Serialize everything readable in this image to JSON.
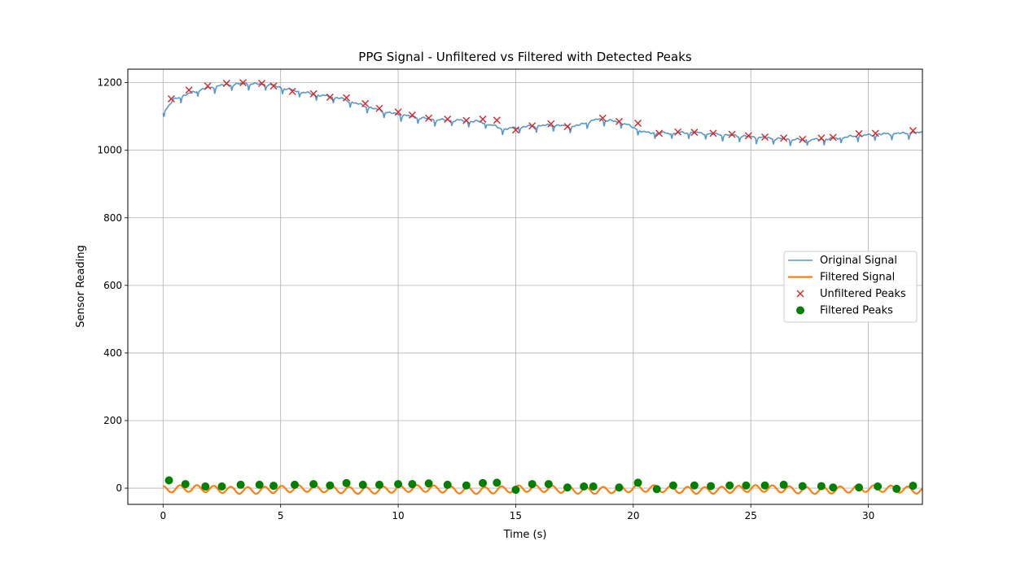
{
  "chart_data": {
    "type": "line",
    "title": "PPG Signal - Unfiltered vs Filtered with Detected Peaks",
    "xlabel": "Time (s)",
    "ylabel": "Sensor Reading",
    "xlim": [
      -1.5,
      32.3
    ],
    "ylim": [
      -48,
      1240
    ],
    "xticks": [
      0,
      5,
      10,
      15,
      20,
      25,
      30
    ],
    "yticks": [
      0,
      200,
      400,
      600,
      800,
      1000,
      1200
    ],
    "grid": true,
    "legend_position": "center-right",
    "colors": {
      "original": "#1f77b4",
      "filtered": "#ff7f0e",
      "unfiltered_peaks": "#d62728",
      "filtered_peaks": "#008000"
    },
    "series": [
      {
        "name": "Original Signal",
        "kind": "line",
        "x": [
          0,
          0.5,
          1.5,
          2.5,
          3.5,
          4.5,
          5.5,
          6.5,
          7.5,
          8.5,
          9.5,
          10.5,
          11.5,
          12.5,
          13.5,
          14.5,
          15.5,
          16.5,
          17.5,
          18.5,
          19.5,
          20.5,
          21.5,
          22.5,
          23.5,
          24.5,
          25.5,
          26.5,
          27.5,
          28.5,
          29.5,
          30.5,
          31.5,
          32.3
        ],
        "y": [
          1110,
          1150,
          1175,
          1190,
          1195,
          1192,
          1175,
          1162,
          1152,
          1130,
          1110,
          1098,
          1088,
          1086,
          1082,
          1060,
          1068,
          1072,
          1068,
          1090,
          1080,
          1050,
          1048,
          1050,
          1045,
          1040,
          1035,
          1030,
          1028,
          1032,
          1040,
          1045,
          1048,
          1050
        ]
      },
      {
        "name": "Filtered Signal",
        "kind": "line"
      },
      {
        "name": "Unfiltered Peaks",
        "kind": "marker",
        "x": [
          0.35,
          1.1,
          1.9,
          2.7,
          3.4,
          4.2,
          4.7,
          5.5,
          6.4,
          7.1,
          7.8,
          8.6,
          9.2,
          10.0,
          10.6,
          11.3,
          12.1,
          12.9,
          13.6,
          14.2,
          15.0,
          15.7,
          16.5,
          17.2,
          18.7,
          19.4,
          20.2,
          21.1,
          21.9,
          22.6,
          23.4,
          24.2,
          24.9,
          25.6,
          26.4,
          27.2,
          28.0,
          28.5,
          29.6,
          30.3,
          31.9
        ],
        "y": [
          1152,
          1178,
          1190,
          1198,
          1200,
          1198,
          1190,
          1174,
          1167,
          1157,
          1155,
          1138,
          1124,
          1113,
          1104,
          1095,
          1092,
          1088,
          1092,
          1089,
          1060,
          1072,
          1078,
          1070,
          1095,
          1085,
          1080,
          1050,
          1054,
          1053,
          1050,
          1047,
          1043,
          1039,
          1036,
          1032,
          1036,
          1038,
          1049,
          1050,
          1058
        ]
      },
      {
        "name": "Filtered Peaks",
        "kind": "marker",
        "x": [
          0.25,
          0.95,
          1.8,
          2.5,
          3.3,
          4.1,
          4.7,
          5.6,
          6.4,
          7.1,
          7.8,
          8.5,
          9.2,
          10.0,
          10.6,
          11.3,
          12.1,
          12.9,
          13.6,
          14.2,
          15.0,
          15.7,
          16.4,
          17.2,
          17.9,
          18.3,
          19.4,
          20.2,
          21.0,
          21.7,
          22.6,
          23.3,
          24.1,
          24.8,
          25.6,
          26.4,
          27.2,
          28.0,
          28.5,
          29.6,
          30.4,
          31.2,
          31.9
        ],
        "y": [
          23,
          12,
          5,
          5,
          10,
          10,
          7,
          10,
          12,
          8,
          15,
          10,
          10,
          12,
          12,
          14,
          10,
          8,
          15,
          16,
          -5,
          12,
          12,
          2,
          5,
          5,
          2,
          16,
          -3,
          8,
          8,
          6,
          8,
          8,
          8,
          10,
          6,
          6,
          2,
          2,
          5,
          -2,
          7
        ]
      }
    ]
  }
}
